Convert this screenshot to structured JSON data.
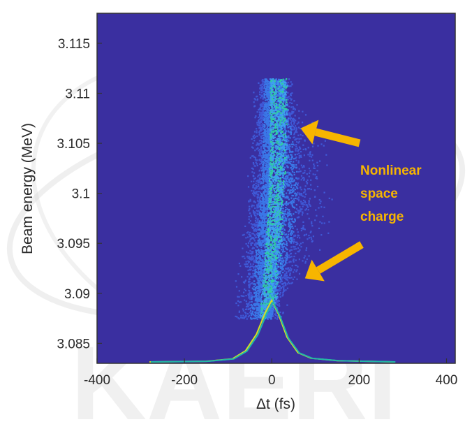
{
  "chart_data": {
    "type": "heatmap",
    "title": "",
    "xlabel": "Δt (fs)",
    "ylabel": "Beam energy (MeV)",
    "xlim": [
      -400,
      420
    ],
    "ylim": [
      3.083,
      3.118
    ],
    "xticks": [
      -400,
      -200,
      0,
      200,
      400
    ],
    "xtick_labels": [
      "-400",
      "-200",
      "0",
      "200",
      "400"
    ],
    "yticks": [
      3.085,
      3.09,
      3.095,
      3.1,
      3.105,
      3.11,
      3.115
    ],
    "ytick_labels": [
      "3.085",
      "3.09",
      "3.095",
      "3.1",
      "3.105",
      "3.11",
      "3.115"
    ],
    "grid": false,
    "background_color": "#3a2fa0",
    "annotation": {
      "lines": [
        "Nonlinear",
        "space",
        "charge"
      ],
      "color": "#f7b500",
      "arrow_targets": [
        {
          "x": 50,
          "y": 3.1065
        },
        {
          "x": 60,
          "y": 3.0915
        }
      ]
    },
    "distribution_ridge": {
      "description_points": [
        {
          "x": 0,
          "y": 3.1115
        },
        {
          "x": 5,
          "y": 3.105
        },
        {
          "x": 0,
          "y": 3.1
        },
        {
          "x": -10,
          "y": 3.095
        },
        {
          "x": -15,
          "y": 3.09
        }
      ]
    },
    "current_profile": {
      "x": [
        -280,
        -150,
        -90,
        -60,
        -35,
        -15,
        0,
        15,
        35,
        60,
        90,
        150,
        280
      ],
      "y_relative": [
        0.0,
        0.01,
        0.05,
        0.18,
        0.45,
        0.8,
        1.0,
        0.78,
        0.4,
        0.15,
        0.06,
        0.02,
        0.0
      ],
      "series_colors": [
        "#d8e020",
        "#20b8a8"
      ]
    }
  },
  "watermark": {
    "text": "KAERI"
  }
}
